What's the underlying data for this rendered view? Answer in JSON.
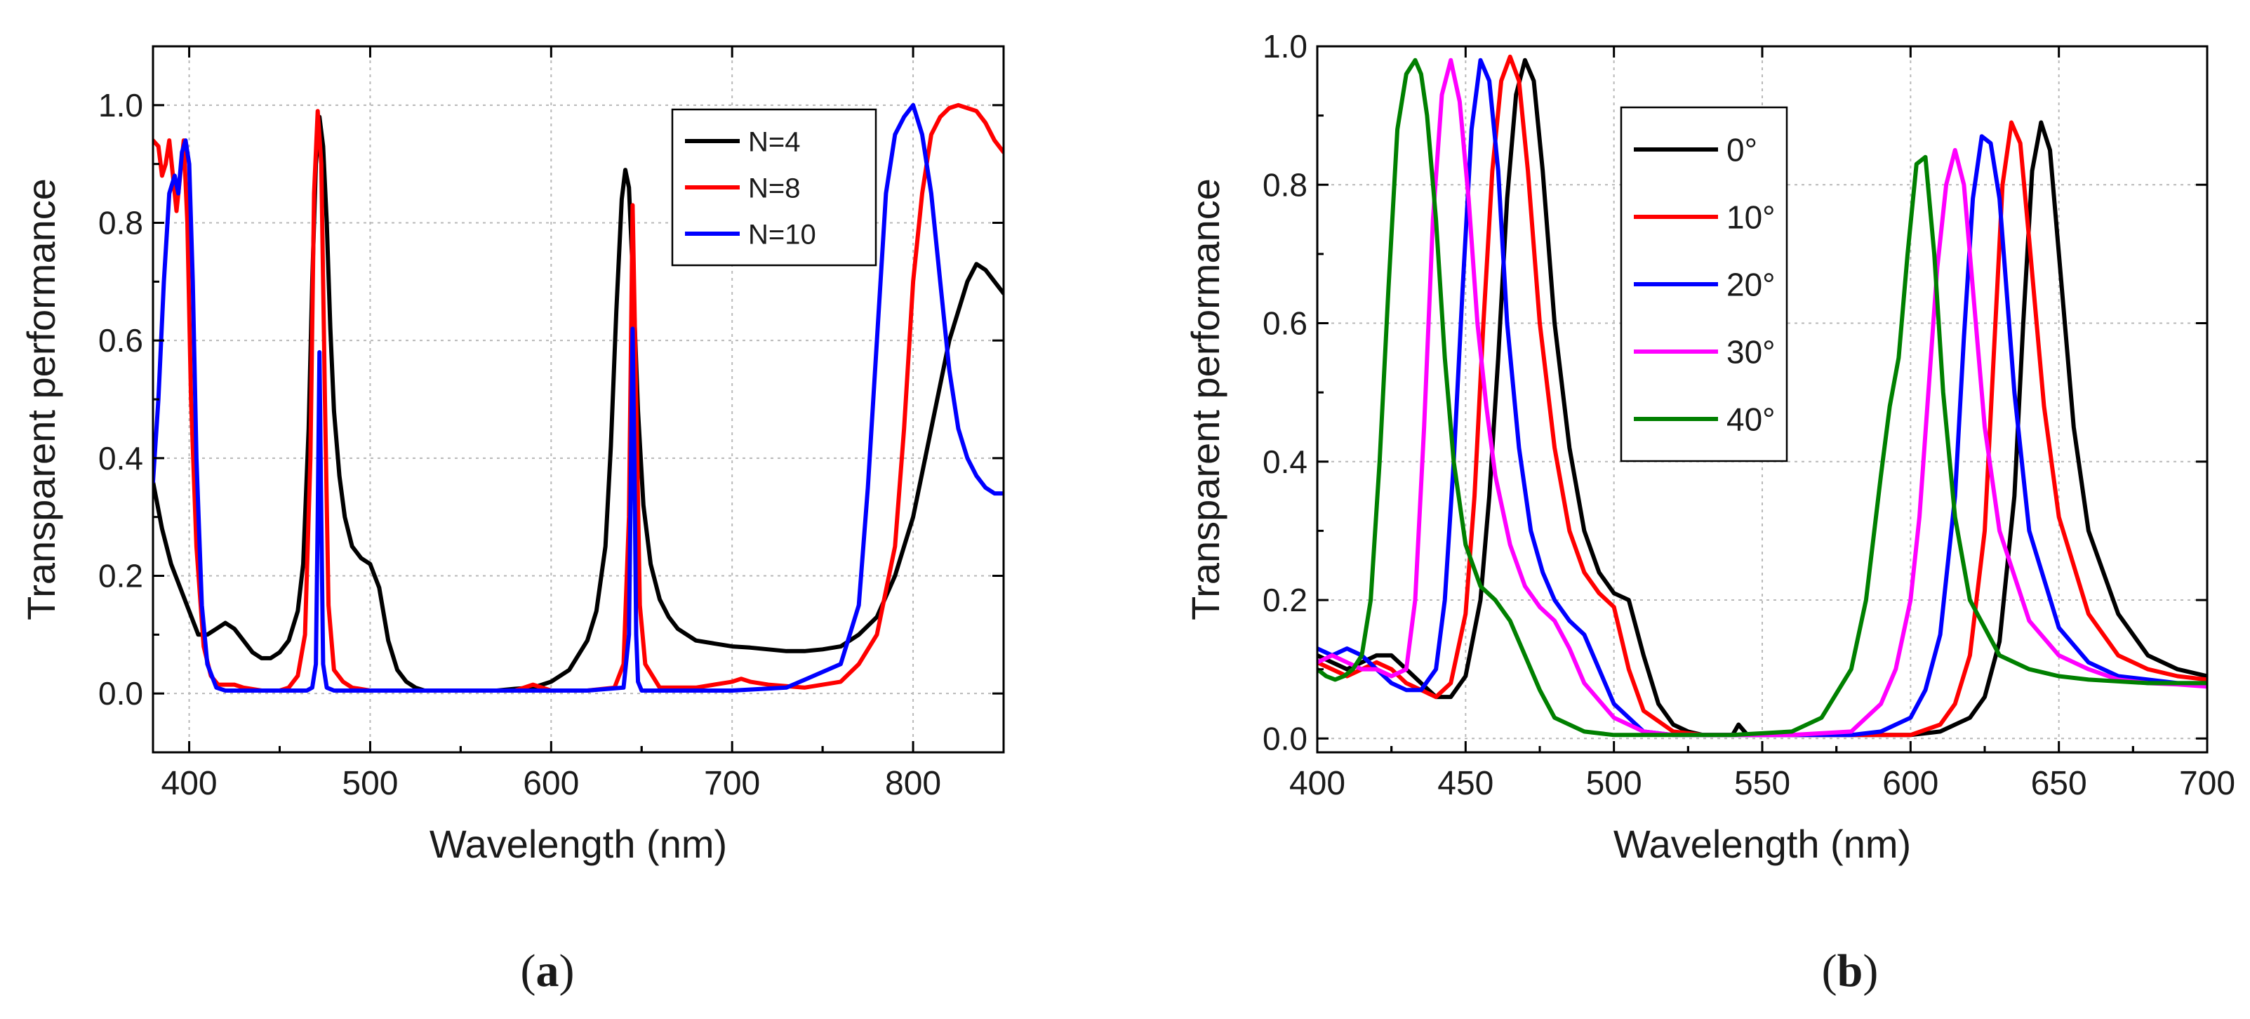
{
  "chart_data": [
    {
      "type": "line",
      "panel_label": "a",
      "xlabel": "Wavelength (nm)",
      "ylabel": "Transparent performance",
      "xlim": [
        380,
        850
      ],
      "ylim": [
        -0.1,
        1.1
      ],
      "xticks": [
        "400",
        "500",
        "600",
        "700",
        "800"
      ],
      "yticks": [
        "0.0",
        "0.2",
        "0.4",
        "0.6",
        "0.8",
        "1.0"
      ],
      "grid": true,
      "legend_placement": "right-center",
      "series": [
        {
          "name": "N=4",
          "color": "#000000",
          "x": [
            380,
            385,
            390,
            395,
            400,
            405,
            410,
            415,
            420,
            425,
            430,
            435,
            440,
            445,
            450,
            455,
            460,
            463,
            466,
            468,
            470,
            472,
            474,
            476,
            478,
            480,
            483,
            486,
            490,
            495,
            500,
            505,
            510,
            515,
            520,
            525,
            530,
            540,
            550,
            560,
            570,
            580,
            590,
            600,
            610,
            620,
            625,
            630,
            633,
            636,
            639,
            641,
            643,
            645,
            648,
            651,
            655,
            660,
            665,
            670,
            680,
            690,
            700,
            710,
            720,
            730,
            740,
            750,
            760,
            770,
            780,
            790,
            800,
            810,
            820,
            830,
            835,
            840,
            845,
            850
          ],
          "y": [
            0.36,
            0.28,
            0.22,
            0.18,
            0.14,
            0.1,
            0.1,
            0.11,
            0.12,
            0.11,
            0.09,
            0.07,
            0.06,
            0.06,
            0.07,
            0.09,
            0.14,
            0.22,
            0.45,
            0.7,
            0.9,
            0.98,
            0.93,
            0.8,
            0.62,
            0.48,
            0.37,
            0.3,
            0.25,
            0.23,
            0.22,
            0.18,
            0.09,
            0.04,
            0.02,
            0.01,
            0.005,
            0.005,
            0.005,
            0.005,
            0.005,
            0.008,
            0.01,
            0.02,
            0.04,
            0.09,
            0.14,
            0.25,
            0.42,
            0.65,
            0.84,
            0.89,
            0.86,
            0.72,
            0.48,
            0.32,
            0.22,
            0.16,
            0.13,
            0.11,
            0.09,
            0.085,
            0.08,
            0.078,
            0.075,
            0.072,
            0.072,
            0.075,
            0.08,
            0.1,
            0.13,
            0.2,
            0.3,
            0.45,
            0.6,
            0.7,
            0.73,
            0.72,
            0.7,
            0.68
          ]
        },
        {
          "name": "N=8",
          "color": "#ff0000",
          "x": [
            380,
            383,
            385,
            387,
            389,
            391,
            393,
            395,
            397,
            399,
            401,
            404,
            408,
            412,
            416,
            420,
            425,
            430,
            440,
            450,
            455,
            460,
            464,
            467,
            469,
            471,
            473,
            475,
            477,
            480,
            485,
            490,
            500,
            520,
            540,
            560,
            580,
            585,
            590,
            595,
            600,
            620,
            635,
            640,
            643,
            645,
            647,
            649,
            652,
            660,
            680,
            700,
            705,
            710,
            720,
            740,
            760,
            770,
            780,
            790,
            795,
            800,
            805,
            810,
            815,
            820,
            825,
            830,
            835,
            840,
            845,
            850
          ],
          "y": [
            0.94,
            0.93,
            0.88,
            0.9,
            0.94,
            0.88,
            0.82,
            0.88,
            0.94,
            0.8,
            0.5,
            0.25,
            0.08,
            0.03,
            0.015,
            0.015,
            0.015,
            0.01,
            0.005,
            0.005,
            0.01,
            0.03,
            0.1,
            0.4,
            0.85,
            0.99,
            0.9,
            0.5,
            0.15,
            0.04,
            0.02,
            0.01,
            0.005,
            0.005,
            0.005,
            0.005,
            0.005,
            0.01,
            0.015,
            0.01,
            0.005,
            0.005,
            0.01,
            0.05,
            0.3,
            0.83,
            0.5,
            0.15,
            0.05,
            0.01,
            0.01,
            0.02,
            0.025,
            0.02,
            0.015,
            0.01,
            0.02,
            0.05,
            0.1,
            0.25,
            0.45,
            0.7,
            0.85,
            0.95,
            0.98,
            0.995,
            1.0,
            0.995,
            0.99,
            0.97,
            0.94,
            0.92
          ]
        },
        {
          "name": "N=10",
          "color": "#0000ff",
          "x": [
            380,
            383,
            386,
            389,
            392,
            394,
            396,
            398,
            400,
            402,
            404,
            407,
            410,
            415,
            420,
            430,
            440,
            450,
            460,
            465,
            468,
            470,
            471,
            472,
            473,
            474,
            476,
            480,
            500,
            520,
            540,
            560,
            580,
            600,
            620,
            640,
            643,
            645,
            646,
            647,
            648,
            650,
            655,
            670,
            700,
            730,
            760,
            770,
            775,
            780,
            785,
            790,
            795,
            800,
            805,
            810,
            815,
            820,
            825,
            830,
            835,
            840,
            845,
            850
          ],
          "y": [
            0.36,
            0.5,
            0.7,
            0.85,
            0.88,
            0.85,
            0.92,
            0.94,
            0.9,
            0.7,
            0.4,
            0.15,
            0.05,
            0.01,
            0.005,
            0.005,
            0.005,
            0.005,
            0.005,
            0.005,
            0.01,
            0.05,
            0.3,
            0.58,
            0.3,
            0.05,
            0.01,
            0.005,
            0.005,
            0.005,
            0.005,
            0.005,
            0.005,
            0.005,
            0.005,
            0.01,
            0.1,
            0.62,
            0.4,
            0.1,
            0.02,
            0.005,
            0.005,
            0.005,
            0.005,
            0.01,
            0.05,
            0.15,
            0.35,
            0.6,
            0.85,
            0.95,
            0.98,
            1.0,
            0.95,
            0.85,
            0.7,
            0.55,
            0.45,
            0.4,
            0.37,
            0.35,
            0.34,
            0.34
          ]
        }
      ]
    },
    {
      "type": "line",
      "panel_label": "b",
      "xlabel": "Wavelength (nm)",
      "ylabel": "Transparent performance",
      "xlim": [
        400,
        700
      ],
      "ylim": [
        -0.02,
        1.0
      ],
      "xticks": [
        "400",
        "450",
        "500",
        "550",
        "600",
        "650",
        "700"
      ],
      "yticks": [
        "0.0",
        "0.2",
        "0.4",
        "0.6",
        "0.8",
        "1.0"
      ],
      "grid": true,
      "legend_placement": "top-left",
      "series": [
        {
          "name": "0°",
          "color": "#000000",
          "x": [
            400,
            405,
            410,
            415,
            420,
            425,
            430,
            435,
            440,
            445,
            450,
            455,
            458,
            461,
            464,
            467,
            470,
            473,
            476,
            480,
            485,
            490,
            495,
            500,
            505,
            510,
            515,
            520,
            525,
            530,
            535,
            540,
            542,
            545,
            550,
            560,
            570,
            580,
            590,
            600,
            610,
            620,
            625,
            630,
            635,
            638,
            641,
            644,
            647,
            650,
            655,
            660,
            670,
            680,
            690,
            700
          ],
          "y": [
            0.12,
            0.11,
            0.1,
            0.11,
            0.12,
            0.12,
            0.1,
            0.08,
            0.06,
            0.06,
            0.09,
            0.2,
            0.35,
            0.55,
            0.78,
            0.93,
            0.98,
            0.95,
            0.82,
            0.6,
            0.42,
            0.3,
            0.24,
            0.21,
            0.2,
            0.12,
            0.05,
            0.02,
            0.01,
            0.005,
            0.005,
            0.005,
            0.02,
            0.005,
            0.005,
            0.005,
            0.005,
            0.005,
            0.005,
            0.005,
            0.01,
            0.03,
            0.06,
            0.14,
            0.35,
            0.6,
            0.82,
            0.89,
            0.85,
            0.7,
            0.45,
            0.3,
            0.18,
            0.12,
            0.1,
            0.09
          ]
        },
        {
          "name": "10°",
          "color": "#ff0000",
          "x": [
            400,
            405,
            410,
            415,
            420,
            425,
            430,
            435,
            440,
            445,
            450,
            453,
            456,
            459,
            462,
            465,
            468,
            471,
            475,
            480,
            485,
            490,
            495,
            500,
            505,
            510,
            520,
            530,
            540,
            550,
            560,
            570,
            580,
            590,
            600,
            610,
            615,
            620,
            625,
            628,
            631,
            634,
            637,
            640,
            645,
            650,
            660,
            670,
            680,
            690,
            700
          ],
          "y": [
            0.11,
            0.1,
            0.09,
            0.1,
            0.11,
            0.1,
            0.08,
            0.07,
            0.06,
            0.08,
            0.18,
            0.35,
            0.6,
            0.82,
            0.95,
            0.985,
            0.95,
            0.82,
            0.6,
            0.42,
            0.3,
            0.24,
            0.21,
            0.19,
            0.1,
            0.04,
            0.01,
            0.005,
            0.005,
            0.005,
            0.005,
            0.005,
            0.005,
            0.005,
            0.005,
            0.02,
            0.05,
            0.12,
            0.3,
            0.55,
            0.8,
            0.89,
            0.86,
            0.72,
            0.48,
            0.32,
            0.18,
            0.12,
            0.1,
            0.09,
            0.085
          ]
        },
        {
          "name": "20°",
          "color": "#0000ff",
          "x": [
            400,
            405,
            410,
            415,
            420,
            425,
            430,
            435,
            440,
            443,
            446,
            449,
            452,
            455,
            458,
            461,
            464,
            468,
            472,
            476,
            480,
            485,
            490,
            495,
            500,
            510,
            520,
            530,
            540,
            560,
            580,
            590,
            600,
            605,
            610,
            615,
            618,
            621,
            624,
            627,
            630,
            635,
            640,
            650,
            660,
            670,
            680,
            690,
            700
          ],
          "y": [
            0.13,
            0.12,
            0.13,
            0.12,
            0.1,
            0.08,
            0.07,
            0.07,
            0.1,
            0.2,
            0.4,
            0.65,
            0.88,
            0.98,
            0.95,
            0.82,
            0.6,
            0.42,
            0.3,
            0.24,
            0.2,
            0.17,
            0.15,
            0.1,
            0.05,
            0.01,
            0.005,
            0.005,
            0.005,
            0.005,
            0.005,
            0.01,
            0.03,
            0.07,
            0.15,
            0.35,
            0.58,
            0.78,
            0.87,
            0.86,
            0.78,
            0.5,
            0.3,
            0.16,
            0.11,
            0.09,
            0.085,
            0.08,
            0.08
          ]
        },
        {
          "name": "30°",
          "color": "#ff00ff",
          "x": [
            400,
            405,
            410,
            415,
            420,
            425,
            430,
            433,
            436,
            439,
            442,
            445,
            448,
            451,
            454,
            457,
            460,
            465,
            470,
            475,
            480,
            485,
            490,
            500,
            510,
            520,
            530,
            540,
            560,
            580,
            590,
            595,
            600,
            603,
            606,
            609,
            612,
            615,
            618,
            621,
            625,
            630,
            640,
            650,
            660,
            670,
            680,
            690,
            700
          ],
          "y": [
            0.11,
            0.12,
            0.11,
            0.1,
            0.1,
            0.09,
            0.1,
            0.2,
            0.45,
            0.75,
            0.93,
            0.98,
            0.92,
            0.78,
            0.6,
            0.48,
            0.38,
            0.28,
            0.22,
            0.19,
            0.17,
            0.13,
            0.08,
            0.03,
            0.01,
            0.005,
            0.005,
            0.005,
            0.005,
            0.01,
            0.05,
            0.1,
            0.2,
            0.32,
            0.5,
            0.68,
            0.8,
            0.85,
            0.8,
            0.65,
            0.45,
            0.3,
            0.17,
            0.12,
            0.1,
            0.085,
            0.08,
            0.078,
            0.075
          ]
        },
        {
          "name": "40°",
          "color": "#008000",
          "x": [
            400,
            403,
            406,
            409,
            412,
            415,
            418,
            421,
            424,
            427,
            430,
            433,
            435,
            437,
            440,
            443,
            446,
            450,
            455,
            460,
            465,
            470,
            475,
            480,
            490,
            500,
            510,
            520,
            540,
            560,
            570,
            580,
            585,
            590,
            593,
            596,
            599,
            602,
            605,
            608,
            611,
            615,
            620,
            630,
            640,
            650,
            660,
            680,
            700
          ],
          "y": [
            0.1,
            0.09,
            0.085,
            0.09,
            0.1,
            0.12,
            0.2,
            0.4,
            0.65,
            0.88,
            0.96,
            0.98,
            0.96,
            0.9,
            0.75,
            0.55,
            0.4,
            0.28,
            0.22,
            0.2,
            0.17,
            0.12,
            0.07,
            0.03,
            0.01,
            0.005,
            0.005,
            0.005,
            0.005,
            0.01,
            0.03,
            0.1,
            0.2,
            0.38,
            0.48,
            0.55,
            0.7,
            0.83,
            0.84,
            0.7,
            0.5,
            0.32,
            0.2,
            0.12,
            0.1,
            0.09,
            0.085,
            0.08,
            0.08
          ]
        }
      ]
    }
  ]
}
